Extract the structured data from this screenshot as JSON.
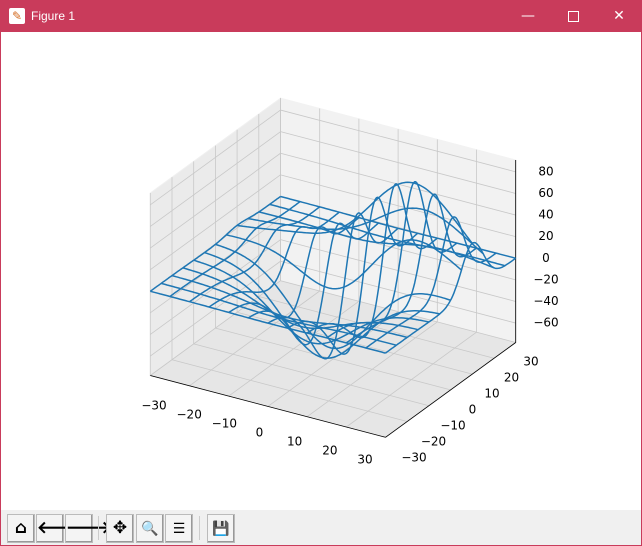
{
  "window": {
    "title": "Figure 1",
    "controls": [
      "minimize",
      "maximize",
      "close"
    ]
  },
  "toolbar": {
    "buttons": [
      {
        "name": "home",
        "icon": "home-icon",
        "glyph": "⌂"
      },
      {
        "name": "back",
        "icon": "arrow-left-icon",
        "glyph": "🡐"
      },
      {
        "name": "forward",
        "icon": "arrow-right-icon",
        "glyph": "🡒"
      },
      {
        "name": "pan",
        "icon": "move-icon",
        "glyph": "✥"
      },
      {
        "name": "zoom",
        "icon": "magnifier-icon",
        "glyph": "🔍"
      },
      {
        "name": "configure",
        "icon": "sliders-icon",
        "glyph": "☰"
      },
      {
        "name": "save",
        "icon": "floppy-disk-icon",
        "glyph": "💾"
      }
    ]
  },
  "chart_data": {
    "type": "wireframe-3d",
    "color": "#1f77b4",
    "x_ticks": [
      -30,
      -20,
      -10,
      0,
      10,
      20,
      30
    ],
    "y_ticks": [
      -30,
      -20,
      -10,
      0,
      10,
      20,
      30
    ],
    "z_ticks": [
      -60,
      -40,
      -20,
      0,
      20,
      40,
      60,
      80
    ],
    "xlim": [
      -30,
      30
    ],
    "ylim": [
      -30,
      30
    ],
    "zlim": [
      -78,
      91
    ],
    "grid_lines": [
      -30,
      -25,
      -20,
      -15,
      -10,
      -5,
      0,
      5,
      10,
      15,
      20,
      25,
      30
    ],
    "surface_components": [
      {
        "amplitude": -79.6,
        "center": [
          0,
          0
        ],
        "sigma": [
          10,
          10
        ]
      },
      {
        "amplitude": 106.1,
        "center": [
          10,
          10
        ],
        "sigma": [
          15,
          5
        ]
      }
    ],
    "grid": true
  }
}
